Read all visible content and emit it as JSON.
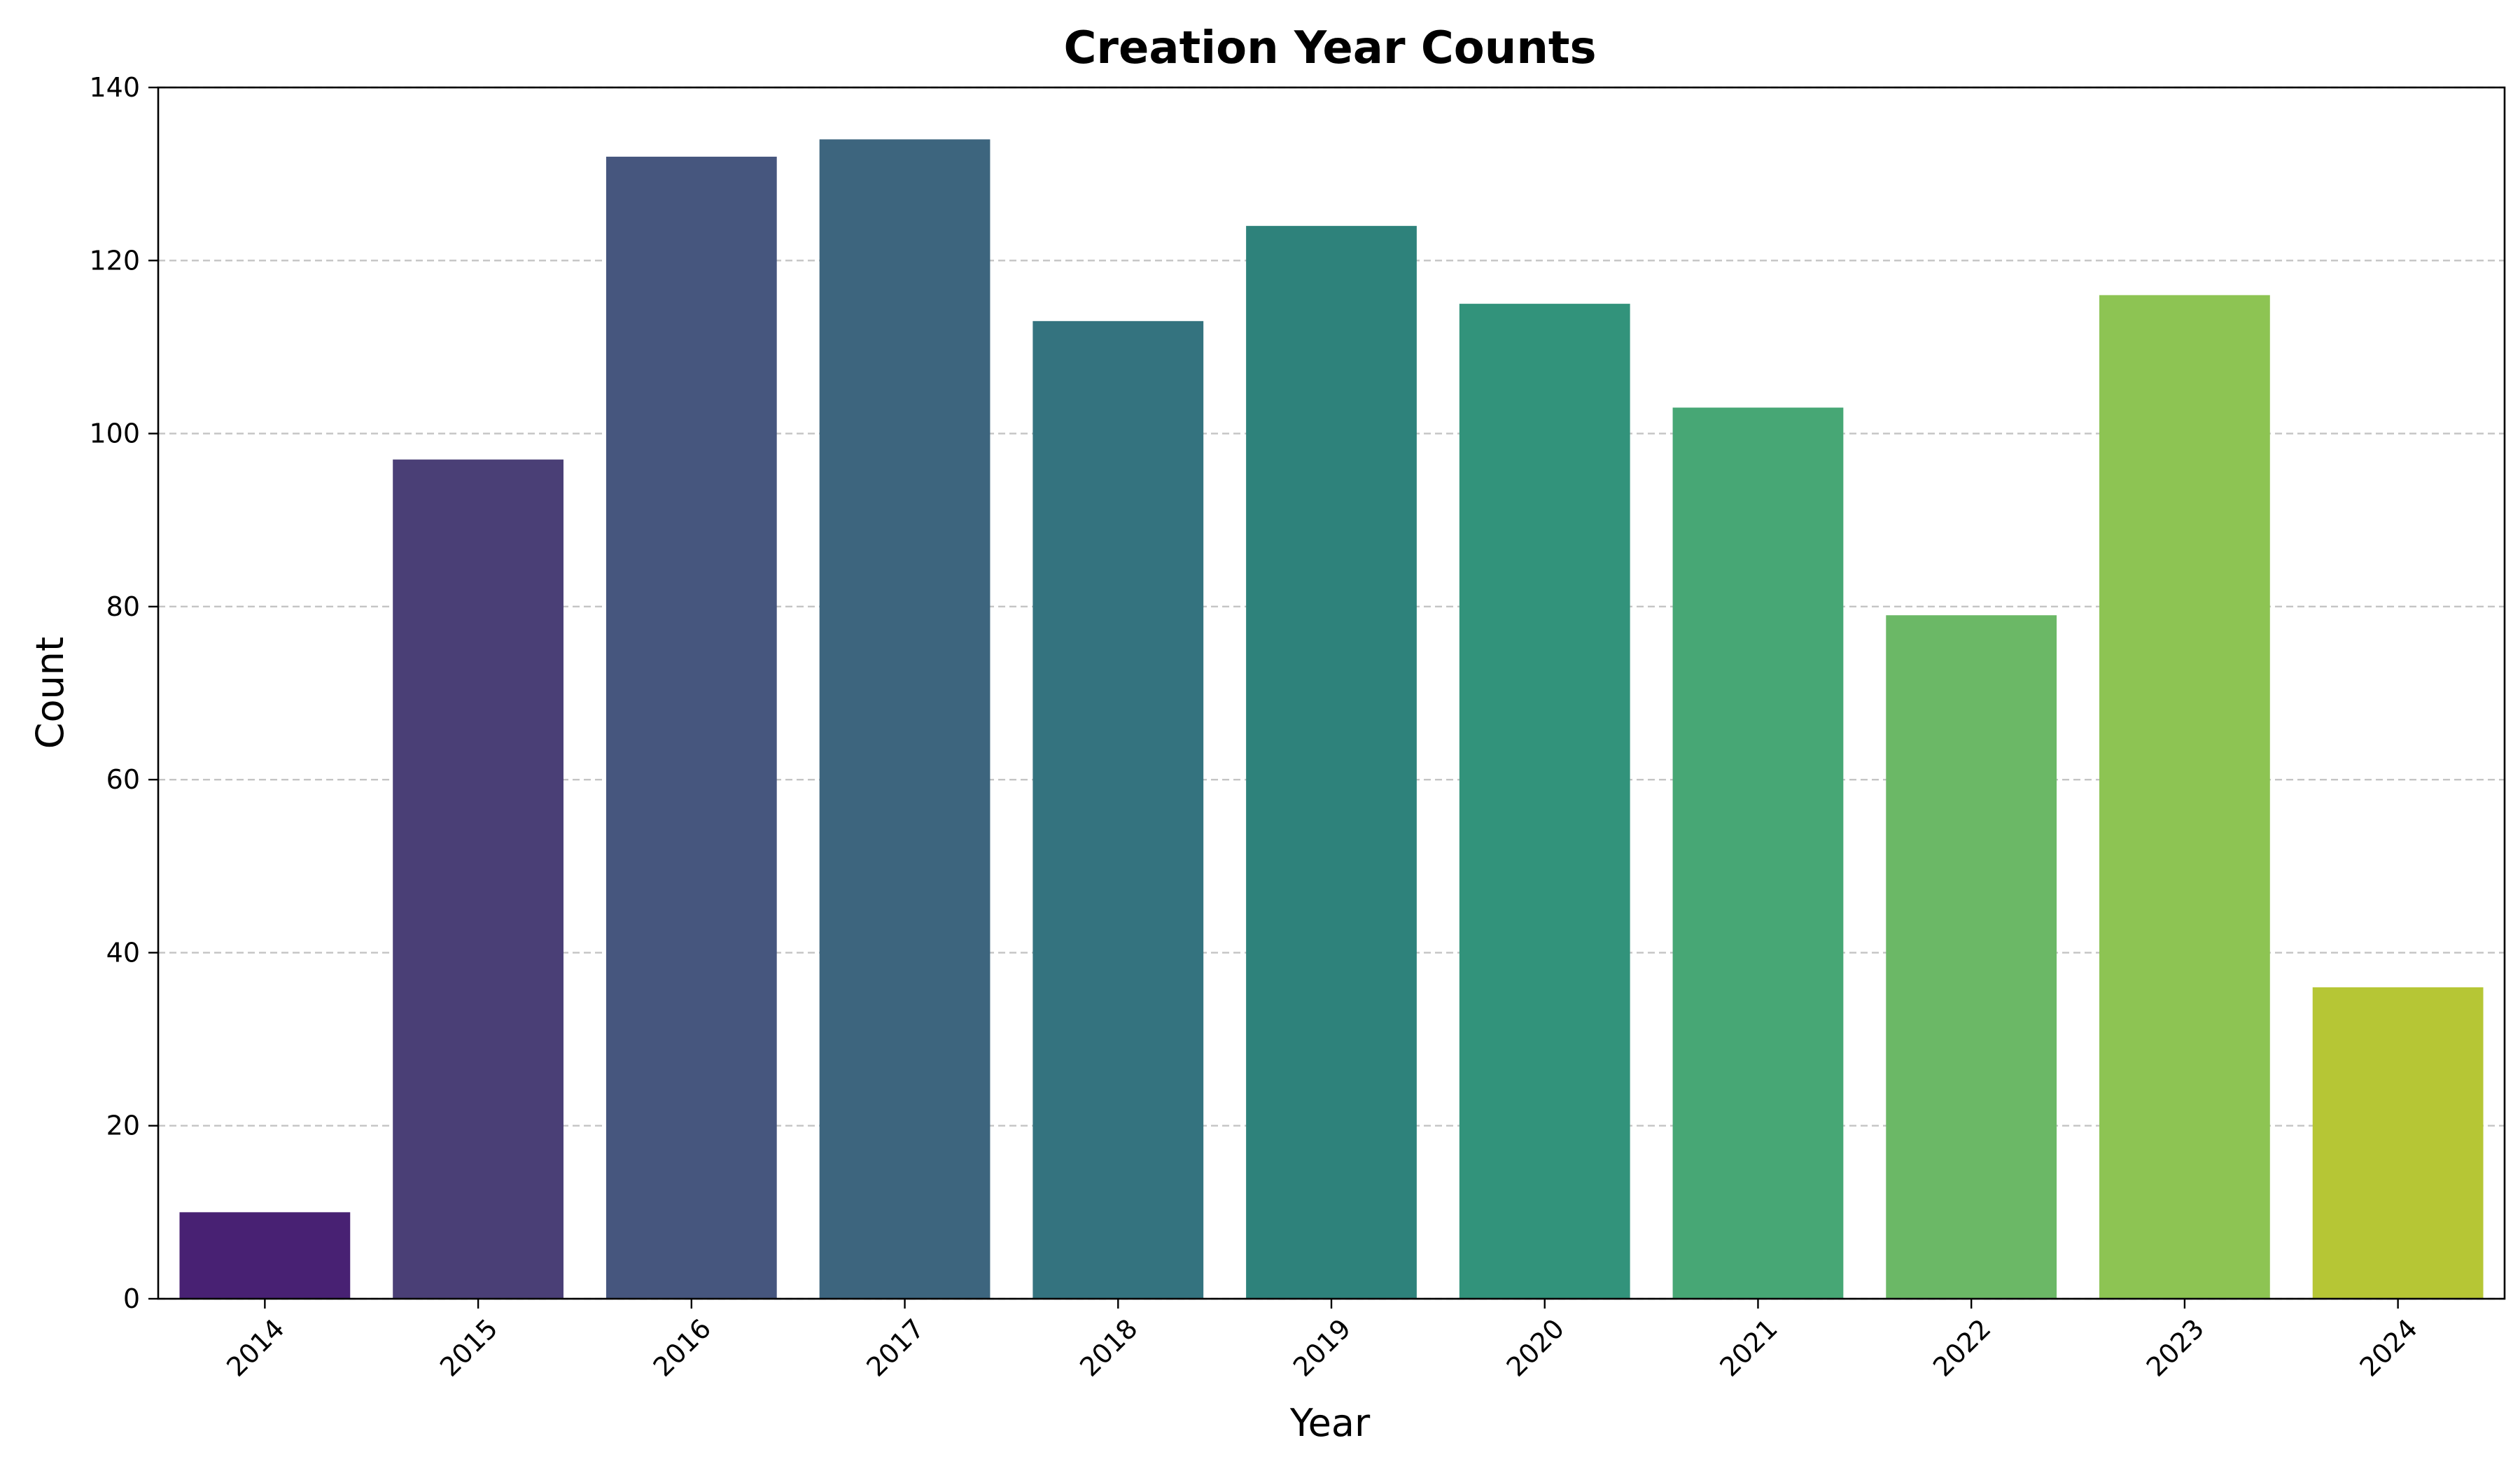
{
  "chart_data": {
    "type": "bar",
    "title": "Creation Year Counts",
    "xlabel": "Year",
    "ylabel": "Count",
    "categories": [
      "2014",
      "2015",
      "2016",
      "2017",
      "2018",
      "2019",
      "2020",
      "2021",
      "2022",
      "2023",
      "2024"
    ],
    "values": [
      10,
      97,
      132,
      134,
      113,
      124,
      115,
      103,
      79,
      116,
      36
    ],
    "ylim": [
      0,
      140
    ],
    "yticks": [
      0,
      20,
      40,
      60,
      80,
      100,
      120,
      140
    ],
    "grid": "horizontal dashed",
    "x_tick_rotation_deg": 45,
    "colors": [
      "#482173",
      "#4a3f76",
      "#46567e",
      "#3d657e",
      "#34737f",
      "#2e827b",
      "#32937b",
      "#47a775",
      "#6bb866",
      "#8dc453",
      "#b6c635"
    ],
    "grid_color": "#c4c4c4"
  }
}
